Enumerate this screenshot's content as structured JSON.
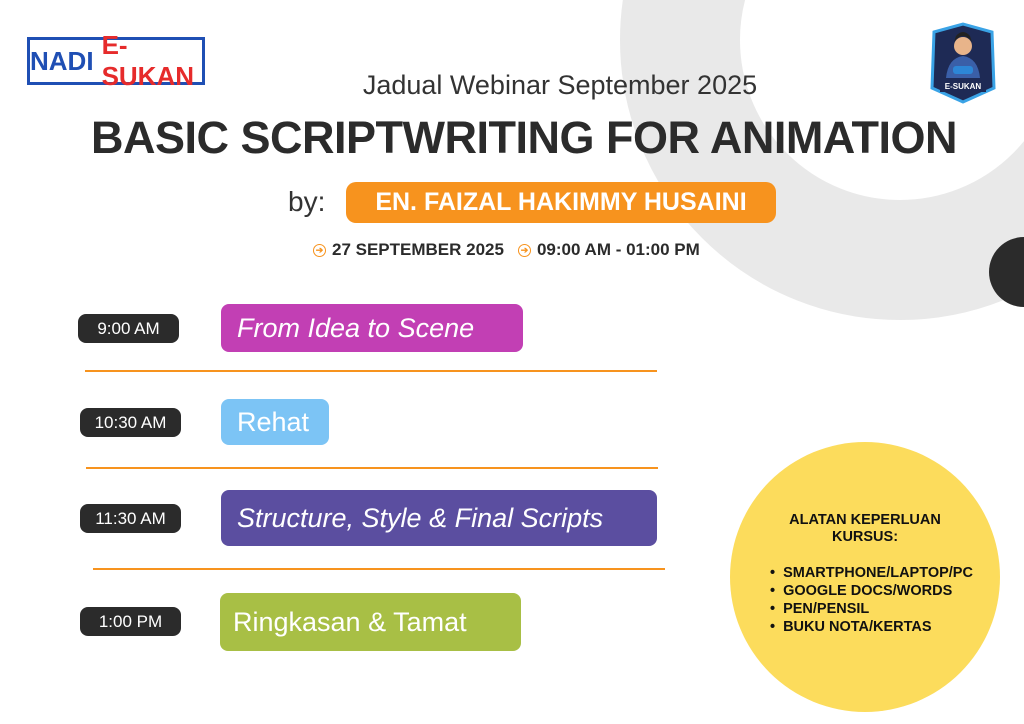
{
  "logo": {
    "text_a": "NADI",
    "text_b": "E-SUKAN"
  },
  "badge": {
    "text": "E-SUKAN"
  },
  "header": {
    "subtitle": "Jadual Webinar September 2025",
    "title": "BASIC SCRIPTWRITING FOR ANIMATION",
    "by": "by:",
    "speaker": "EN. FAIZAL HAKIMMY HUSAINI",
    "date": "27 SEPTEMBER 2025",
    "time": "09:00 AM - 01:00 PM"
  },
  "schedule": [
    {
      "time": "9:00 AM",
      "title": "From Idea to Scene",
      "color": "#c23fb4"
    },
    {
      "time": "10:30 AM",
      "title": "Rehat",
      "color": "#7cc4f5"
    },
    {
      "time": "11:30 AM",
      "title": "Structure, Style & Final Scripts",
      "color": "#5b4ea0"
    },
    {
      "time": "1:00 PM",
      "title": "Ringkasan & Tamat",
      "color": "#a8bf45"
    }
  ],
  "tools": {
    "heading_1": "ALATAN KEPERLUAN",
    "heading_2": "KURSUS:",
    "items": [
      "SMARTPHONE/LAPTOP/PC",
      "GOOGLE DOCS/WORDS",
      "PEN/PENSIL",
      "BUKU NOTA/KERTAS"
    ]
  },
  "colors": {
    "accent": "#f7931e",
    "dark": "#2b2b2b",
    "yellow": "#fcdc5c"
  }
}
